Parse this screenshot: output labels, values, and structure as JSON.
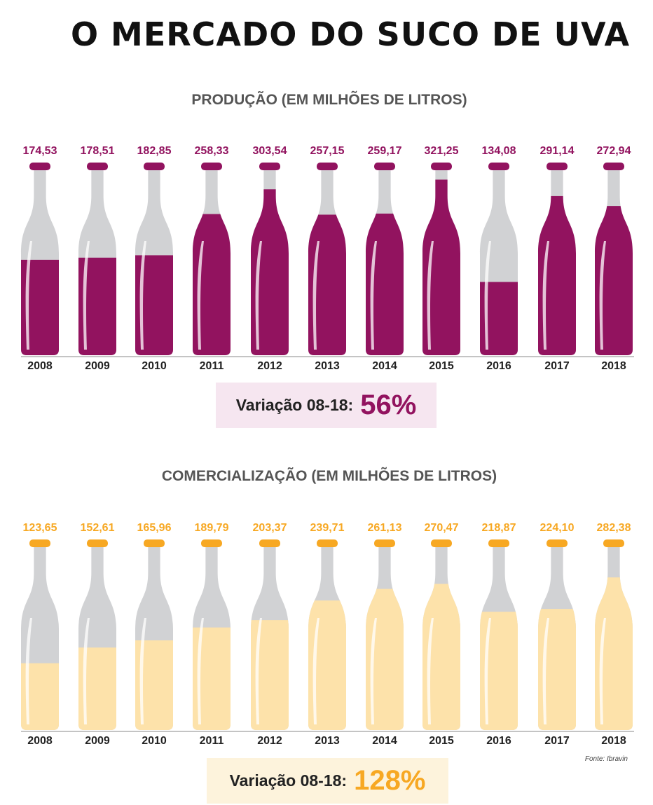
{
  "title": "O MERCADO DO SUCO DE UVA",
  "source": "Fonte: Ibravin",
  "colors": {
    "production": "#92135f",
    "commercialization": "#f7a823",
    "commercialization_fill": "#fde2aa",
    "bottle_empty": "#d1d2d4"
  },
  "chart_data": [
    {
      "type": "bar",
      "title": "PRODUÇÃO (EM MILHÕES DE LITROS)",
      "categories": [
        "2008",
        "2009",
        "2010",
        "2011",
        "2012",
        "2013",
        "2014",
        "2015",
        "2016",
        "2017",
        "2018"
      ],
      "values": [
        174.53,
        178.51,
        182.85,
        258.33,
        303.54,
        257.15,
        259.17,
        321.25,
        134.08,
        291.14,
        272.94
      ],
      "labels": [
        "174,53",
        "178,51",
        "182,85",
        "258,33",
        "303,54",
        "257,15",
        "259,17",
        "321,25",
        "134,08",
        "291,14",
        "272,94"
      ],
      "xlabel": "",
      "ylabel": "",
      "variation_label": "Variação 08-18:",
      "variation_value": "56%"
    },
    {
      "type": "bar",
      "title": "COMERCIALIZAÇÃO (EM MILHÕES DE LITROS)",
      "categories": [
        "2008",
        "2009",
        "2010",
        "2011",
        "2012",
        "2013",
        "2014",
        "2015",
        "2016",
        "2017",
        "2018"
      ],
      "values": [
        123.65,
        152.61,
        165.96,
        189.79,
        203.37,
        239.71,
        261.13,
        270.47,
        218.87,
        224.1,
        282.38
      ],
      "labels": [
        "123,65",
        "152,61",
        "165,96",
        "189,79",
        "203,37",
        "239,71",
        "261,13",
        "270,47",
        "218,87",
        "224,10",
        "282,38"
      ],
      "xlabel": "",
      "ylabel": "",
      "variation_label": "Variação 08-18:",
      "variation_value": "128%"
    }
  ]
}
